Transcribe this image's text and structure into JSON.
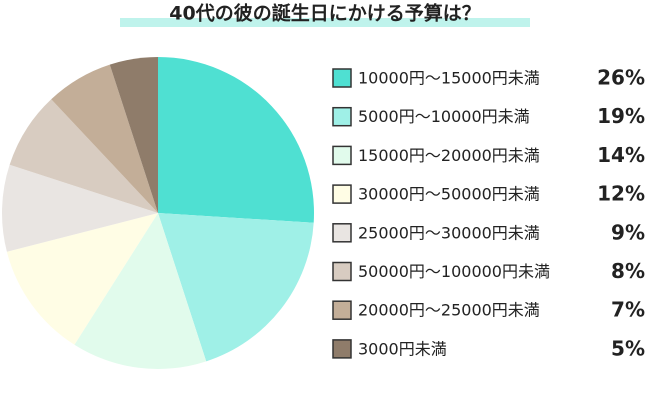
{
  "chart_data": {
    "type": "pie",
    "title": "40代の彼の誕生日にかける予算は？",
    "categories": [
      "10000円～15000円未満",
      "5000円～10000円未満",
      "15000円～20000円未満",
      "30000円～50000円未満",
      "25000円～30000円未満",
      "50000円～100000円未満",
      "20000円～25000円未満",
      "3000円未満"
    ],
    "values": [
      26,
      19,
      14,
      12,
      9,
      8,
      7,
      5
    ],
    "value_labels": [
      "26%",
      "19%",
      "14%",
      "12%",
      "9%",
      "8%",
      "7%",
      "5%"
    ],
    "colors": [
      "#4fe0d2",
      "#9ff0e7",
      "#e1fbec",
      "#fffde5",
      "#e9e5e2",
      "#d8ccc1",
      "#c3ae98",
      "#8f7c6a"
    ]
  }
}
